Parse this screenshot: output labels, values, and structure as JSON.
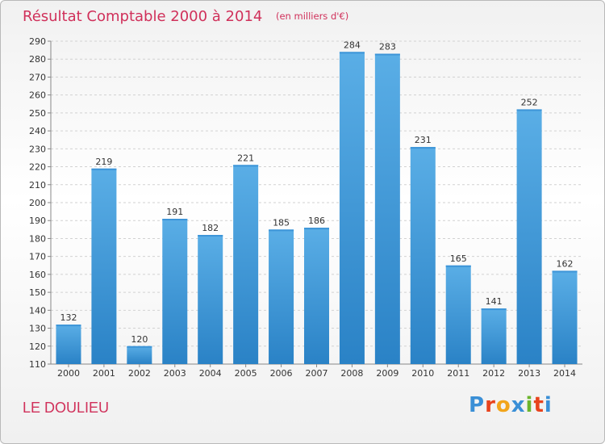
{
  "header": {
    "title": "Résultat Comptable 2000 à 2014",
    "unit": "(en milliers d'€)"
  },
  "commune": "LE DOULIEU",
  "logo": {
    "text": "Proxiti",
    "colors": [
      "#3a8fd6",
      "#e8431d",
      "#f2a51b",
      "#3a8fd6",
      "#6cb52d",
      "#e8431d",
      "#3a8fd6"
    ]
  },
  "colors": {
    "title": "#d0305a",
    "bar_light": "#5aaee6",
    "bar_dark": "#2a82c6"
  },
  "chart_data": {
    "type": "bar",
    "categories": [
      "2000",
      "2001",
      "2002",
      "2003",
      "2004",
      "2005",
      "2006",
      "2007",
      "2008",
      "2009",
      "2010",
      "2011",
      "2012",
      "2013",
      "2014"
    ],
    "values": [
      132,
      219,
      120,
      191,
      182,
      221,
      185,
      186,
      284,
      283,
      231,
      165,
      141,
      252,
      162
    ],
    "ylim": [
      110,
      290
    ],
    "yticks": [
      110,
      120,
      130,
      140,
      150,
      160,
      170,
      180,
      190,
      200,
      210,
      220,
      230,
      240,
      250,
      260,
      270,
      280,
      290
    ],
    "grid": true,
    "data_labels": true
  }
}
